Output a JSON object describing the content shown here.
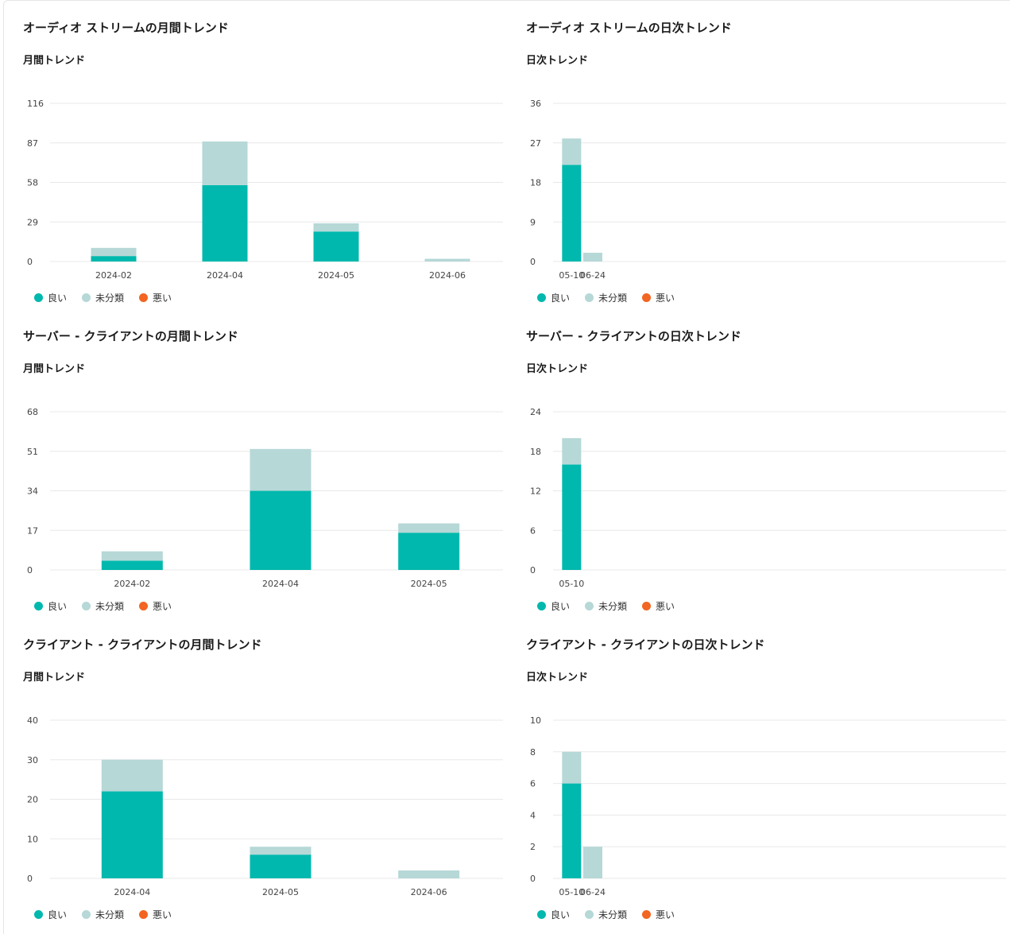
{
  "colors": {
    "good": "#00b8ad",
    "uncat": "#b6d8d7",
    "bad": "#f26522",
    "grid": "#e8e8e8"
  },
  "legend": {
    "good": "良い",
    "uncat": "未分類",
    "bad": "悪い"
  },
  "panels": [
    {
      "title": "オーディオ ストリームの月間トレンド",
      "subtitle": "月間トレンド",
      "chart_data": {
        "type": "bar",
        "stacked": true,
        "categories": [
          "2024-02",
          "2024-04",
          "2024-05",
          "2024-06"
        ],
        "series": [
          {
            "name": "良い",
            "values": [
              4,
              56,
              22,
              0
            ]
          },
          {
            "name": "未分類",
            "values": [
              6,
              32,
              6,
              2
            ]
          },
          {
            "name": "悪い",
            "values": [
              0,
              0,
              0,
              0
            ]
          }
        ],
        "yticks": [
          0,
          29,
          58,
          87,
          116
        ],
        "ylim": [
          0,
          116
        ],
        "slots": 4,
        "barWidth": 57
      }
    },
    {
      "title": "オーディオ ストリームの日次トレンド",
      "subtitle": "日次トレンド",
      "chart_data": {
        "type": "bar",
        "stacked": true,
        "categories": [
          "05-10",
          "06-24"
        ],
        "series": [
          {
            "name": "良い",
            "values": [
              22,
              0
            ]
          },
          {
            "name": "未分類",
            "values": [
              6,
              2
            ]
          },
          {
            "name": "悪い",
            "values": [
              0,
              0
            ]
          }
        ],
        "yticks": [
          0,
          9,
          18,
          27,
          36
        ],
        "ylim": [
          0,
          36
        ],
        "slots": 21,
        "barWidth": 24
      }
    },
    {
      "title": "サーバー - クライアントの月間トレンド",
      "subtitle": "月間トレンド",
      "chart_data": {
        "type": "bar",
        "stacked": true,
        "categories": [
          "2024-02",
          "2024-04",
          "2024-05"
        ],
        "series": [
          {
            "name": "良い",
            "values": [
              4,
              34,
              16
            ]
          },
          {
            "name": "未分類",
            "values": [
              4,
              18,
              4
            ]
          },
          {
            "name": "悪い",
            "values": [
              0,
              0,
              0
            ]
          }
        ],
        "yticks": [
          0,
          17,
          34,
          51,
          68
        ],
        "ylim": [
          0,
          68
        ],
        "slots": 3,
        "barWidth": 77
      }
    },
    {
      "title": "サーバー - クライアントの日次トレンド",
      "subtitle": "日次トレンド",
      "chart_data": {
        "type": "bar",
        "stacked": true,
        "categories": [
          "05-10"
        ],
        "series": [
          {
            "name": "良い",
            "values": [
              16
            ]
          },
          {
            "name": "未分類",
            "values": [
              4
            ]
          },
          {
            "name": "悪い",
            "values": [
              0
            ]
          }
        ],
        "yticks": [
          0,
          6,
          12,
          18,
          24
        ],
        "ylim": [
          0,
          24
        ],
        "slots": 21,
        "barWidth": 24
      }
    },
    {
      "title": "クライアント - クライアントの月間トレンド",
      "subtitle": "月間トレンド",
      "chart_data": {
        "type": "bar",
        "stacked": true,
        "categories": [
          "2024-04",
          "2024-05",
          "2024-06"
        ],
        "series": [
          {
            "name": "良い",
            "values": [
              22,
              6,
              0
            ]
          },
          {
            "name": "未分類",
            "values": [
              8,
              2,
              2
            ]
          },
          {
            "name": "悪い",
            "values": [
              0,
              0,
              0
            ]
          }
        ],
        "yticks": [
          0,
          10,
          20,
          30,
          40
        ],
        "ylim": [
          0,
          40
        ],
        "slots": 3,
        "barWidth": 77
      }
    },
    {
      "title": "クライアント - クライアントの日次トレンド",
      "subtitle": "日次トレンド",
      "chart_data": {
        "type": "bar",
        "stacked": true,
        "categories": [
          "05-10",
          "06-24"
        ],
        "series": [
          {
            "name": "良い",
            "values": [
              6,
              0
            ]
          },
          {
            "name": "未分類",
            "values": [
              2,
              2
            ]
          },
          {
            "name": "悪い",
            "values": [
              0,
              0
            ]
          }
        ],
        "yticks": [
          0,
          2,
          4,
          6,
          8,
          10
        ],
        "ylim": [
          0,
          10
        ],
        "slots": 21,
        "barWidth": 24
      }
    }
  ]
}
